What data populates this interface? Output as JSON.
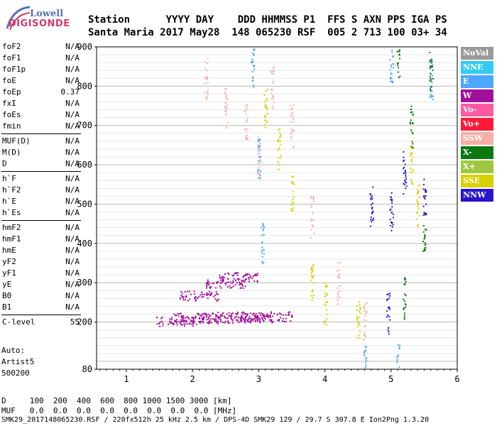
{
  "logo": {
    "top": "Lowell",
    "bottom": "DIGISONDE"
  },
  "header": {
    "row1": "Station      YYYY DAY    DDD HHMMSS P1  FFS S AXN PPS IGA PS",
    "row2": "Santa Maria 2017 May28  148 065230 RSF  005 2 713 100 03+ 34"
  },
  "params": [
    {
      "name": "foF2",
      "value": "N/A"
    },
    {
      "name": "foF1",
      "value": "N/A"
    },
    {
      "name": "foF1p",
      "value": "N/A"
    },
    {
      "name": "foE",
      "value": "N/A"
    },
    {
      "name": "foEp",
      "value": "0.37"
    },
    {
      "name": "fxI",
      "value": "N/A"
    },
    {
      "name": "foEs",
      "value": "N/A"
    },
    {
      "name": "fmin",
      "value": "N/A"
    },
    {
      "sep": true
    },
    {
      "name": "MUF(D)",
      "value": "N/A"
    },
    {
      "name": "M(D)",
      "value": "N/A"
    },
    {
      "name": "D",
      "value": "N/A"
    },
    {
      "sep": true
    },
    {
      "name": "h`F",
      "value": "N/A"
    },
    {
      "name": "h`F2",
      "value": "N/A"
    },
    {
      "name": "h`E",
      "value": "N/A"
    },
    {
      "name": "h`Es",
      "value": "N/A"
    },
    {
      "sep": true
    },
    {
      "name": "hmF2",
      "value": "N/A"
    },
    {
      "name": "hmF1",
      "value": "N/A"
    },
    {
      "name": "hmE",
      "value": "N/A"
    },
    {
      "name": "yF2",
      "value": "N/A"
    },
    {
      "name": "yF1",
      "value": "N/A"
    },
    {
      "name": "yE",
      "value": "N/A"
    },
    {
      "name": "B0",
      "value": "N/A"
    },
    {
      "name": "B1",
      "value": "N/A"
    },
    {
      "sep": true
    },
    {
      "name": "C-level",
      "value": "55"
    }
  ],
  "auto": {
    "label": "Auto:",
    "program": "Artist5",
    "version": "500200"
  },
  "legend": [
    {
      "label": "NoVal",
      "color": "#9a9a9a"
    },
    {
      "label": "NNE",
      "color": "#33ccee"
    },
    {
      "label": "E",
      "color": "#4da6ff"
    },
    {
      "label": "W",
      "color": "#a0109a"
    },
    {
      "label": "Vo-",
      "color": "#ff5aa0"
    },
    {
      "label": "Vo+",
      "color": "#ff1a3a"
    },
    {
      "label": "SSW",
      "color": "#f5b0a8"
    },
    {
      "label": "X-",
      "color": "#0a7a10"
    },
    {
      "label": "X+",
      "color": "#9dc840"
    },
    {
      "label": "SSE",
      "color": "#d6d000"
    },
    {
      "label": "NNW",
      "color": "#2a14c8"
    }
  ],
  "footer": {
    "row1": "D     100  200  400  600  800 1000 1500 3000 [km]",
    "row2": "MUF   0.0  0.0  0.0  0.0  0.0  0.0  0.0  0.0 [MHz]",
    "row3": "SMK29_2017148065230.RSF / 220fx512h 25 kHz 2.5 km / DPS-4D SMK29 129 / 29.7 S 307.8 E Ion2Png 1.3.20"
  },
  "chart_data": {
    "type": "scatter",
    "title": "",
    "xlabel": "",
    "ylabel": "",
    "xlim": [
      0.55,
      6.0
    ],
    "ylim": [
      80,
      900
    ],
    "xticks": [
      1,
      2,
      3,
      4,
      5,
      6
    ],
    "yticks": [
      80,
      200,
      300,
      400,
      500,
      600,
      700,
      800,
      900
    ],
    "grid": "horizontal",
    "legend_position": "right",
    "series": [
      {
        "name": "W",
        "points": [
          [
            1.75,
            203
          ],
          [
            2.0,
            212
          ],
          [
            2.3,
            210
          ],
          [
            2.6,
            215
          ],
          [
            2.9,
            212
          ],
          [
            3.2,
            215
          ],
          [
            2.1,
            268
          ],
          [
            2.5,
            300
          ],
          [
            2.7,
            315
          ]
        ]
      },
      {
        "name": "SSW",
        "points": [
          [
            2.2,
            820
          ],
          [
            2.5,
            750
          ],
          [
            2.8,
            700
          ],
          [
            3.0,
            620
          ],
          [
            3.2,
            800
          ],
          [
            3.5,
            700
          ],
          [
            3.8,
            470
          ],
          [
            4.2,
            300
          ],
          [
            4.6,
            200
          ]
        ]
      },
      {
        "name": "SSE",
        "points": [
          [
            3.1,
            750
          ],
          [
            3.3,
            640
          ],
          [
            3.5,
            520
          ],
          [
            3.8,
            300
          ],
          [
            4.0,
            250
          ],
          [
            4.5,
            200
          ],
          [
            5.3,
            600
          ],
          [
            5.4,
            500
          ]
        ]
      },
      {
        "name": "E",
        "points": [
          [
            2.9,
            850
          ],
          [
            3.0,
            620
          ],
          [
            3.05,
            400
          ],
          [
            5.0,
            860
          ],
          [
            5.6,
            820
          ],
          [
            4.6,
            90
          ],
          [
            5.1,
            90
          ]
        ]
      },
      {
        "name": "NNW",
        "points": [
          [
            4.7,
            500
          ],
          [
            5.0,
            480
          ],
          [
            5.2,
            580
          ],
          [
            5.5,
            510
          ],
          [
            4.95,
            220
          ]
        ]
      },
      {
        "name": "X-",
        "points": [
          [
            5.1,
            870
          ],
          [
            5.3,
            700
          ],
          [
            5.5,
            430
          ],
          [
            5.2,
            260
          ],
          [
            5.6,
            840
          ]
        ]
      }
    ]
  }
}
